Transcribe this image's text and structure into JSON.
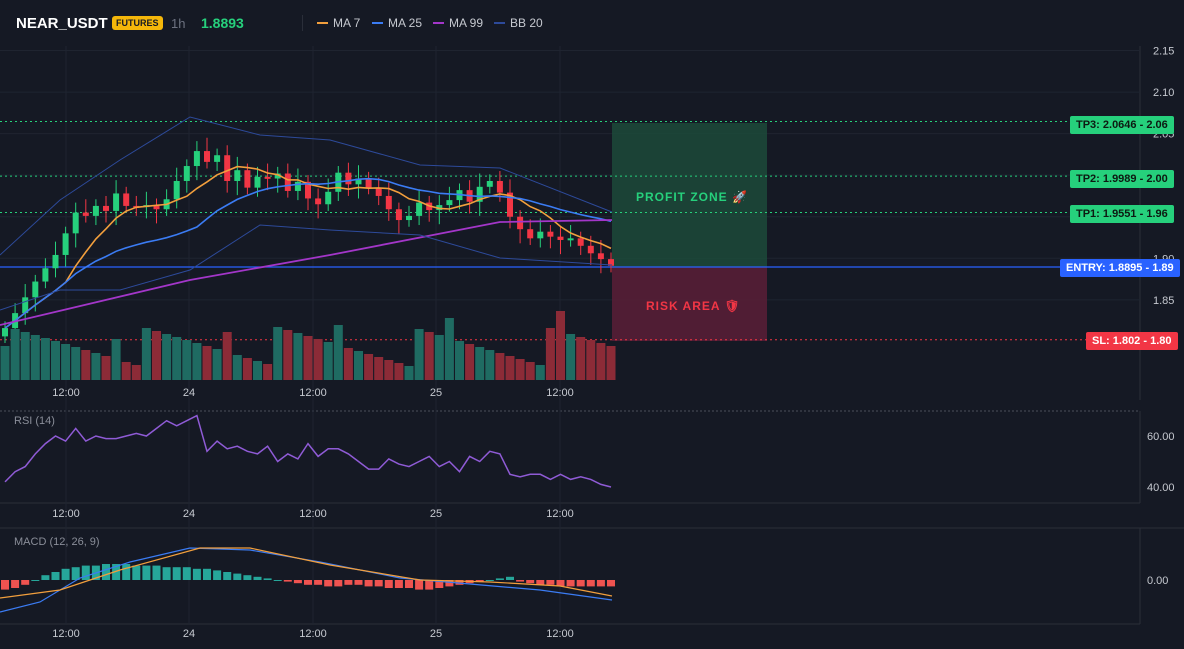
{
  "header": {
    "symbol": "NEAR_USDT",
    "badge": "FUTURES",
    "timeframe": "1h",
    "price": "1.8893",
    "legend": [
      {
        "label": "MA 7",
        "color": "#f29f3d"
      },
      {
        "label": "MA 25",
        "color": "#3b7cf4"
      },
      {
        "label": "MA 99",
        "color": "#a336c9"
      },
      {
        "label": "BB 20",
        "color": "#2d4a9a"
      }
    ]
  },
  "price_axis": [
    "2.15",
    "2.10",
    "2.05",
    "2.00",
    "1.95",
    "1.90",
    "1.85"
  ],
  "time_axis": [
    "12:00",
    "24",
    "12:00",
    "25",
    "12:00"
  ],
  "levels": {
    "tp3": {
      "tag": "TP3: 2.0646",
      "axis": "2.06",
      "value": 2.0646
    },
    "tp2": {
      "tag": "TP2: 1.9989",
      "axis": "2.00",
      "value": 1.9989
    },
    "tp1": {
      "tag": "TP1: 1.9551",
      "axis": "1.96",
      "value": 1.9551
    },
    "entry": {
      "tag": "ENTRY: 1.8895",
      "axis": "1.89",
      "value": 1.8895
    },
    "sl": {
      "tag": "SL: 1.802",
      "axis": "1.80",
      "value": 1.802
    }
  },
  "zones": {
    "profit": "PROFIT ZONE 🚀",
    "risk": "RISK AREA 🛡"
  },
  "rsi": {
    "label": "RSI (14)",
    "axis": [
      "60.00",
      "40.00"
    ]
  },
  "macd": {
    "label": "MACD (12, 26, 9)",
    "axis": [
      "0.00"
    ]
  },
  "colors": {
    "up": "#26d07c",
    "down": "#f23645",
    "vol_up": "#1f6b62",
    "vol_down": "#8c2b37",
    "profit": "#1c4a3a",
    "risk": "#5a1f37",
    "rsi_line": "#8f5bd6",
    "macd_line": "#3b7cf4",
    "signal_line": "#f29f3d"
  }
}
